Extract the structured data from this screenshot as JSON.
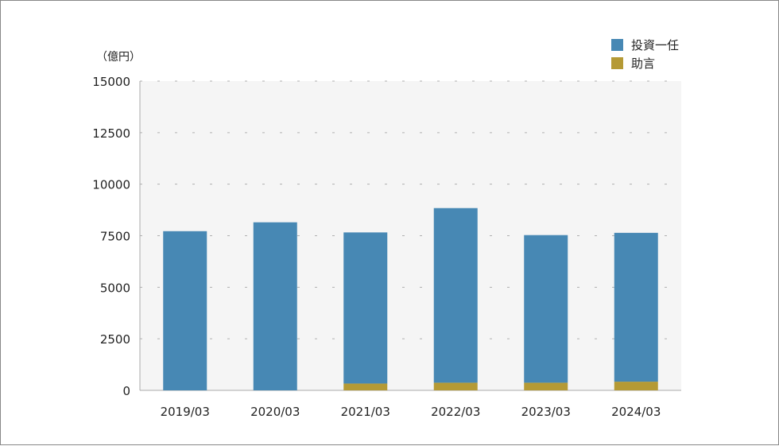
{
  "chart_data": {
    "type": "bar",
    "stacked": true,
    "unit_label": "（億円）",
    "categories": [
      "2019/03",
      "2020/03",
      "2021/03",
      "2022/03",
      "2023/03",
      "2024/03"
    ],
    "series": [
      {
        "name": "助言",
        "color": "#b59a35",
        "values": [
          0,
          0,
          330,
          370,
          370,
          420
        ]
      },
      {
        "name": "投資一任",
        "color": "#4788b4",
        "values": [
          7720,
          8150,
          7330,
          8470,
          7160,
          7220
        ]
      }
    ],
    "legend_order": [
      "投資一任",
      "助言"
    ],
    "legend_position": "top-right",
    "ylim": [
      0,
      15000
    ],
    "yticks": [
      0,
      2500,
      5000,
      7500,
      10000,
      12500,
      15000
    ],
    "grid": true,
    "plot_background": "#f5f5f5",
    "grid_color": "#b0b0b0"
  }
}
